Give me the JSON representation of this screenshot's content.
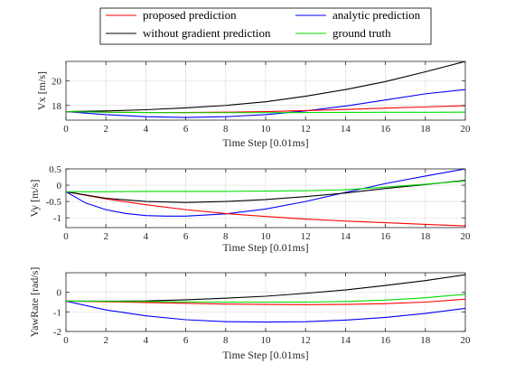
{
  "chart_data": [
    {
      "type": "line",
      "xlabel": "Time Step [0.01ms]",
      "ylabel": "Vx [m/s]",
      "xlim": [
        0,
        20
      ],
      "ylim": [
        16.8,
        21.6
      ],
      "xticks": [
        0,
        2,
        4,
        6,
        8,
        10,
        12,
        14,
        16,
        18,
        20
      ],
      "yticks": [
        18,
        20
      ],
      "grid": true,
      "series": [
        {
          "name": "proposed prediction",
          "color": "#ff0000",
          "x": [
            0,
            2,
            4,
            6,
            8,
            10,
            12,
            14,
            16,
            18,
            20
          ],
          "y": [
            17.5,
            17.45,
            17.42,
            17.42,
            17.45,
            17.5,
            17.58,
            17.67,
            17.78,
            17.88,
            17.98
          ]
        },
        {
          "name": "analytic prediction",
          "color": "#0000ff",
          "x": [
            0,
            2,
            4,
            6,
            8,
            10,
            12,
            14,
            16,
            18,
            20
          ],
          "y": [
            17.5,
            17.25,
            17.08,
            17.02,
            17.08,
            17.25,
            17.55,
            17.95,
            18.45,
            18.95,
            19.3
          ]
        },
        {
          "name": "without gradient prediction",
          "color": "#000000",
          "x": [
            0,
            2,
            4,
            6,
            8,
            10,
            12,
            14,
            16,
            18,
            20
          ],
          "y": [
            17.5,
            17.55,
            17.65,
            17.8,
            18.0,
            18.3,
            18.75,
            19.3,
            19.95,
            20.75,
            21.6
          ]
        },
        {
          "name": "ground truth",
          "color": "#00dd00",
          "x": [
            0,
            2,
            4,
            6,
            8,
            10,
            12,
            14,
            16,
            18,
            20
          ],
          "y": [
            17.5,
            17.45,
            17.42,
            17.41,
            17.41,
            17.41,
            17.42,
            17.43,
            17.44,
            17.44,
            17.45
          ]
        }
      ]
    },
    {
      "type": "line",
      "xlabel": "Time Step [0.01ms]",
      "ylabel": "Vy [m/s]",
      "xlim": [
        0,
        20
      ],
      "ylim": [
        -1.3,
        0.5
      ],
      "xticks": [
        0,
        2,
        4,
        6,
        8,
        10,
        12,
        14,
        16,
        18,
        20
      ],
      "yticks": [
        -1,
        -0.5,
        0,
        0.5
      ],
      "grid": true,
      "series": [
        {
          "name": "proposed prediction",
          "color": "#ff0000",
          "x": [
            0,
            2,
            4,
            6,
            8,
            10,
            12,
            14,
            16,
            18,
            20
          ],
          "y": [
            -0.2,
            -0.42,
            -0.6,
            -0.75,
            -0.87,
            -0.96,
            -1.04,
            -1.1,
            -1.15,
            -1.2,
            -1.25
          ]
        },
        {
          "name": "analytic prediction",
          "color": "#0000ff",
          "x": [
            0,
            1,
            2,
            3,
            4,
            5,
            6,
            8,
            10,
            12,
            14,
            16,
            18,
            20
          ],
          "y": [
            -0.2,
            -0.55,
            -0.75,
            -0.87,
            -0.93,
            -0.95,
            -0.95,
            -0.88,
            -0.73,
            -0.5,
            -0.22,
            0.05,
            0.28,
            0.5
          ]
        },
        {
          "name": "without gradient prediction",
          "color": "#000000",
          "x": [
            0,
            2,
            4,
            6,
            8,
            10,
            12,
            14,
            16,
            18,
            20
          ],
          "y": [
            -0.2,
            -0.4,
            -0.5,
            -0.53,
            -0.5,
            -0.44,
            -0.35,
            -0.24,
            -0.1,
            0.02,
            0.15
          ]
        },
        {
          "name": "ground truth",
          "color": "#00dd00",
          "x": [
            0,
            2,
            4,
            6,
            8,
            10,
            12,
            14,
            16,
            18,
            20
          ],
          "y": [
            -0.2,
            -0.2,
            -0.19,
            -0.19,
            -0.19,
            -0.18,
            -0.17,
            -0.14,
            -0.06,
            0.03,
            0.13
          ]
        }
      ]
    },
    {
      "type": "line",
      "xlabel": "Time Step [0.01ms]",
      "ylabel": "YawRate [rad/s]",
      "xlim": [
        0,
        20
      ],
      "ylim": [
        -2,
        1
      ],
      "xticks": [
        0,
        2,
        4,
        6,
        8,
        10,
        12,
        14,
        16,
        18,
        20
      ],
      "yticks": [
        -2,
        -1,
        0
      ],
      "grid": true,
      "series": [
        {
          "name": "proposed prediction",
          "color": "#ff0000",
          "x": [
            0,
            2,
            4,
            6,
            8,
            10,
            12,
            14,
            16,
            18,
            20
          ],
          "y": [
            -0.45,
            -0.48,
            -0.52,
            -0.56,
            -0.6,
            -0.62,
            -0.63,
            -0.62,
            -0.58,
            -0.5,
            -0.35
          ]
        },
        {
          "name": "analytic prediction",
          "color": "#0000ff",
          "x": [
            0,
            2,
            4,
            6,
            8,
            10,
            12,
            14,
            16,
            18,
            20
          ],
          "y": [
            -0.45,
            -0.9,
            -1.2,
            -1.4,
            -1.5,
            -1.52,
            -1.5,
            -1.42,
            -1.28,
            -1.08,
            -0.82
          ]
        },
        {
          "name": "without gradient prediction",
          "color": "#000000",
          "x": [
            0,
            2,
            4,
            6,
            8,
            10,
            12,
            14,
            16,
            18,
            20
          ],
          "y": [
            -0.45,
            -0.45,
            -0.44,
            -0.38,
            -0.3,
            -0.2,
            -0.05,
            0.12,
            0.35,
            0.6,
            0.9
          ]
        },
        {
          "name": "ground truth",
          "color": "#00dd00",
          "x": [
            0,
            2,
            4,
            6,
            8,
            10,
            12,
            14,
            16,
            18,
            20
          ],
          "y": [
            -0.45,
            -0.46,
            -0.47,
            -0.49,
            -0.5,
            -0.5,
            -0.5,
            -0.47,
            -0.4,
            -0.28,
            -0.1
          ]
        }
      ]
    }
  ],
  "legend": {
    "placement": "top-center",
    "entries": [
      {
        "label": "proposed prediction",
        "color": "#ff0000"
      },
      {
        "label": "analytic prediction",
        "color": "#0000ff"
      },
      {
        "label": "without gradient prediction",
        "color": "#000000"
      },
      {
        "label": "ground truth",
        "color": "#00dd00"
      }
    ]
  }
}
